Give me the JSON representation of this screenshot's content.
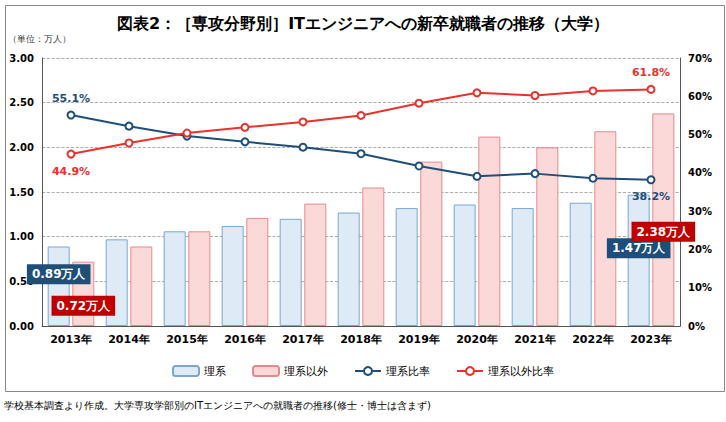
{
  "chart_data": {
    "type": "bar",
    "title": "図表2：［専攻分野別］ITエンジニアへの新卒就職者の推移（大学）",
    "y_label": "（単位：万人）",
    "note": "学校基本調査より作成。大学専攻学部別のITエンジニアへの就職者の推移(修士・博士は含まず)",
    "categories": [
      "2013年",
      "2014年",
      "2015年",
      "2016年",
      "2017年",
      "2018年",
      "2019年",
      "2020年",
      "2021年",
      "2022年",
      "2023年"
    ],
    "series": [
      {
        "name": "理系",
        "type": "bar",
        "color": "#deebf7",
        "values": [
          0.89,
          0.97,
          1.06,
          1.12,
          1.2,
          1.27,
          1.32,
          1.36,
          1.32,
          1.38,
          1.47
        ]
      },
      {
        "name": "理系以外",
        "type": "bar",
        "color": "#fbd9d9",
        "values": [
          0.72,
          0.89,
          1.06,
          1.21,
          1.37,
          1.55,
          1.84,
          2.12,
          2.0,
          2.18,
          2.38
        ]
      },
      {
        "name": "理系比率",
        "type": "line",
        "axis": "y2",
        "color": "#1f4e79",
        "marker": "circle",
        "values": [
          55.1,
          52.2,
          49.6,
          48.1,
          46.7,
          45.0,
          41.8,
          39.1,
          39.8,
          38.6,
          38.2
        ]
      },
      {
        "name": "理系以外比率",
        "type": "line",
        "axis": "y2",
        "color": "#e8322d",
        "marker": "circle",
        "values": [
          44.9,
          47.8,
          50.4,
          51.9,
          53.3,
          55.0,
          58.2,
          60.9,
          60.2,
          61.4,
          61.8
        ]
      }
    ],
    "ylim": [
      0,
      3
    ],
    "yticks": [
      {
        "value": 0,
        "label": "0.00"
      },
      {
        "value": 0.5,
        "label": "0.50"
      },
      {
        "value": 1,
        "label": "1.00"
      },
      {
        "value": 1.5,
        "label": "1.50"
      },
      {
        "value": 2,
        "label": "2.00"
      },
      {
        "value": 2.5,
        "label": "2.50"
      },
      {
        "value": 3,
        "label": "3.00"
      }
    ],
    "y2lim": [
      0,
      70
    ],
    "y2ticks": [
      {
        "value": 0,
        "label": "0%"
      },
      {
        "value": 10,
        "label": "10%"
      },
      {
        "value": 20,
        "label": "20%"
      },
      {
        "value": 30,
        "label": "30%"
      },
      {
        "value": 40,
        "label": "40%"
      },
      {
        "value": 50,
        "label": "50%"
      },
      {
        "value": 60,
        "label": "60%"
      },
      {
        "value": 70,
        "label": "70%"
      }
    ],
    "grid": true,
    "legend": "bottom",
    "annotations": [
      {
        "series": "理系",
        "category": "2013年",
        "text": "0.89万人"
      },
      {
        "series": "理系以外",
        "category": "2013年",
        "text": "0.72万人"
      },
      {
        "series": "理系",
        "category": "2023年",
        "text": "1.47万人"
      },
      {
        "series": "理系以外",
        "category": "2023年",
        "text": "2.38万人"
      },
      {
        "series": "理系比率",
        "category": "2013年",
        "text": "55.1%"
      },
      {
        "series": "理系以外比率",
        "category": "2013年",
        "text": "44.9%"
      },
      {
        "series": "理系比率",
        "category": "2023年",
        "text": "38.2%"
      },
      {
        "series": "理系以外比率",
        "category": "2023年",
        "text": "61.8%"
      }
    ]
  }
}
